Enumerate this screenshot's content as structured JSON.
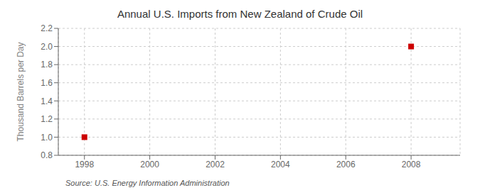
{
  "chart_data": {
    "type": "scatter",
    "title": "Annual U.S. Imports from New Zealand of Crude Oil",
    "ylabel": "Thousand Barrels per Day",
    "annotations": [
      "Source: U.S. Energy Information Administration"
    ],
    "x": [
      1998,
      2008
    ],
    "values": [
      1.0,
      2.0
    ],
    "color": "#cc0000",
    "marker": "square",
    "xlim": [
      1997.2,
      2009.5
    ],
    "xticks": [
      1998,
      2000,
      2002,
      2004,
      2006,
      2008
    ],
    "ylim": [
      0.8,
      2.2
    ],
    "yticks": [
      0.8,
      {
        "value": 1.0,
        "label": "1.0"
      },
      1.2,
      1.4,
      1.6,
      1.8,
      {
        "value": 2.0,
        "label": "2.0"
      },
      2.2
    ],
    "grid": true
  }
}
